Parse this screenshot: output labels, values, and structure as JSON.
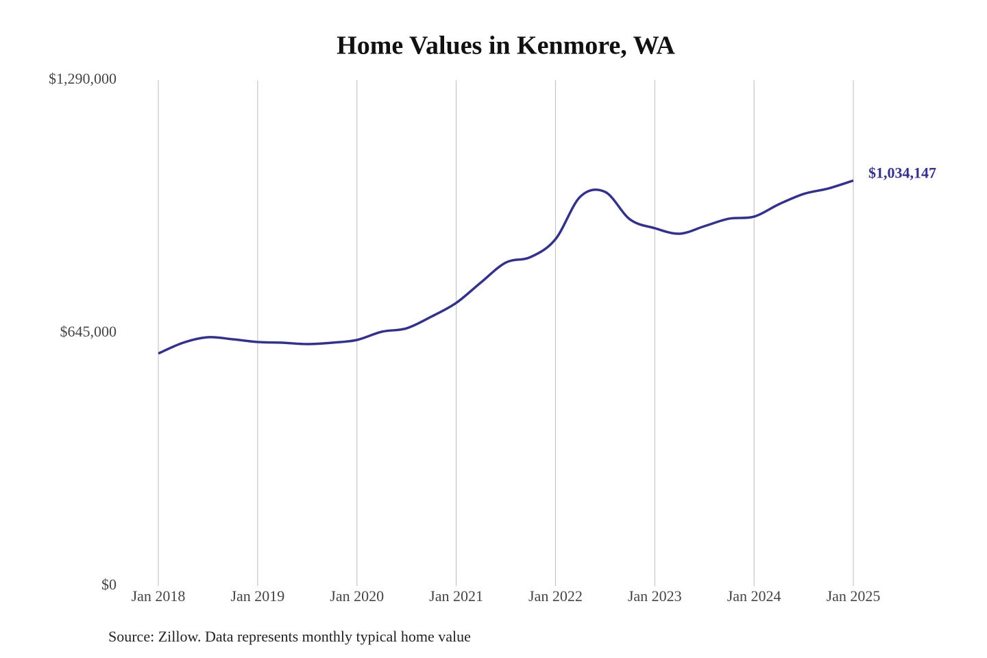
{
  "chart_data": {
    "type": "line",
    "title": "Home Values in Kenmore, WA",
    "source": "Source: Zillow. Data represents monthly typical home value",
    "categories": [
      "Jan 2018",
      null,
      null,
      null,
      "Jan 2019",
      null,
      null,
      null,
      "Jan 2020",
      null,
      null,
      null,
      "Jan 2021",
      null,
      null,
      null,
      "Jan 2022",
      null,
      null,
      null,
      "Jan 2023",
      null,
      null,
      null,
      "Jan 2024",
      null,
      null,
      null,
      "Jan 2025"
    ],
    "series": [
      {
        "name": "Home value",
        "color": "#34318a",
        "values": [
          593000,
          620500,
          634500,
          629300,
          622300,
          620500,
          617000,
          620500,
          627500,
          648500,
          657200,
          687000,
          722000,
          774400,
          825000,
          839000,
          884500,
          993000,
          1005100,
          935000,
          912500,
          898500,
          917700,
          937000,
          942000,
          973600,
          1000000,
          1014000,
          1034147
        ],
        "value_labels": [
          null,
          null,
          null,
          null,
          null,
          null,
          null,
          null,
          null,
          null,
          null,
          null,
          null,
          null,
          null,
          null,
          null,
          null,
          null,
          null,
          null,
          null,
          null,
          null,
          null,
          null,
          null,
          null,
          "$1,034,147"
        ]
      }
    ],
    "ylim": [
      0,
      1290000
    ],
    "yticks": [
      {
        "value": 0,
        "label": "$0"
      },
      {
        "value": 645000,
        "label": "$645,000"
      },
      {
        "value": 1290000,
        "label": "$1,290,000"
      }
    ],
    "grid": "x"
  }
}
